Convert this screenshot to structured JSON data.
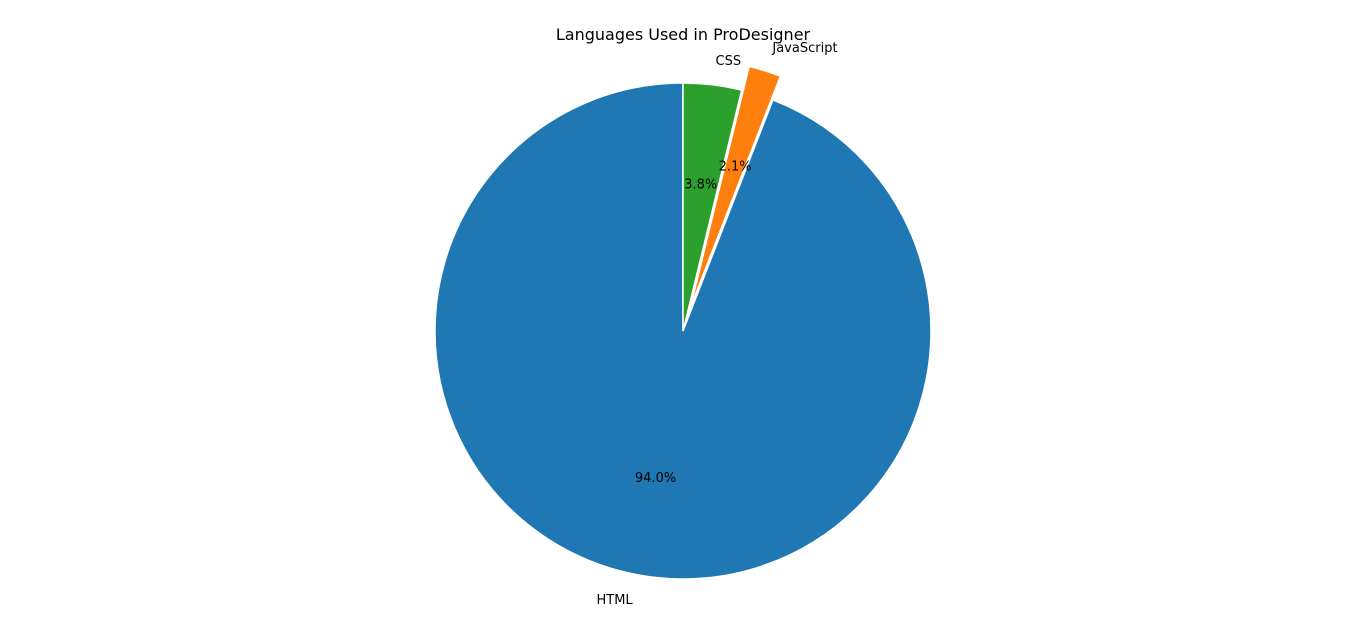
{
  "chart_data": {
    "type": "pie",
    "title": "Languages Used in ProDesigner",
    "start_angle_deg": 90,
    "direction": "counterclockwise",
    "slices": [
      {
        "label": "HTML",
        "value": 94.0,
        "pct_label": "94.0%",
        "color": "#1f77b4",
        "exploded": false
      },
      {
        "label": "JavaScript",
        "value": 2.1,
        "pct_label": "2.1%",
        "color": "#ff7f0e",
        "exploded": true
      },
      {
        "label": "CSS",
        "value": 3.8,
        "pct_label": "3.8%",
        "color": "#2ca02c",
        "exploded": false
      }
    ],
    "edge_color": "#ffffff"
  }
}
